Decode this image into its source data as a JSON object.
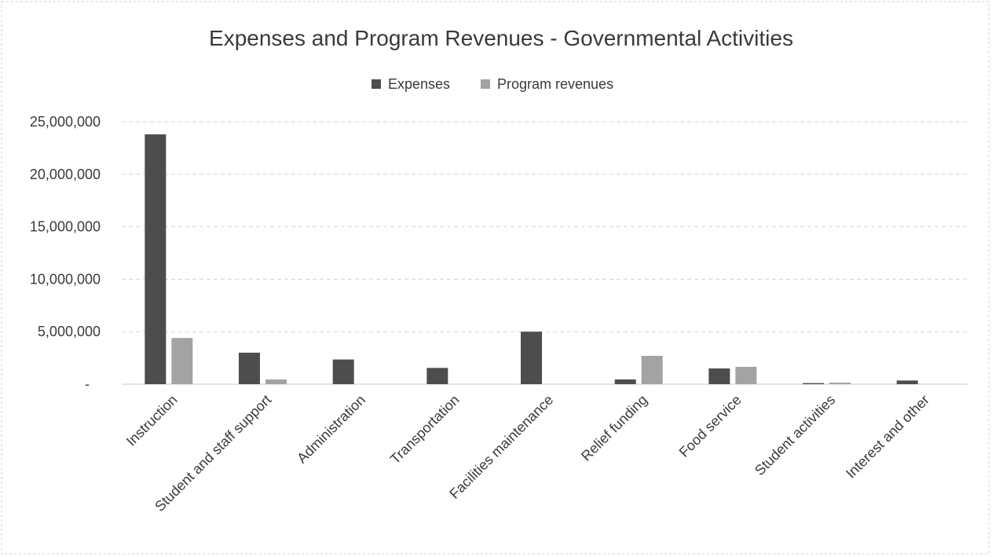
{
  "chart_data": {
    "type": "bar",
    "title": "Expenses and Program Revenues - Governmental Activities",
    "xlabel": "",
    "ylabel": "",
    "categories": [
      "Instruction",
      "Student and staff support",
      "Administration",
      "Transportation",
      "Facilities maintenance",
      "Relief funding",
      "Food service",
      "Student activities",
      "Interest and other"
    ],
    "series": [
      {
        "name": "Expenses",
        "color": "#4d4d4d",
        "values": [
          23800000,
          3000000,
          2350000,
          1550000,
          5000000,
          450000,
          1500000,
          100000,
          350000
        ]
      },
      {
        "name": "Program revenues",
        "color": "#a3a3a3",
        "values": [
          4400000,
          450000,
          0,
          0,
          0,
          2700000,
          1650000,
          150000,
          0
        ]
      }
    ],
    "ylim": [
      0,
      25000000
    ],
    "yticks": [
      0,
      5000000,
      10000000,
      15000000,
      20000000,
      25000000
    ],
    "ytick_labels": [
      "-",
      "5,000,000",
      "10,000,000",
      "15,000,000",
      "20,000,000",
      "25,000,000"
    ],
    "grid": true,
    "legend_position": "top-center"
  }
}
